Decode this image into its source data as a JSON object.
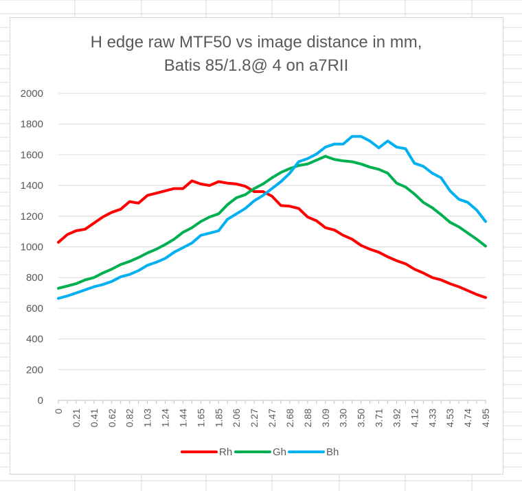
{
  "sheet": {
    "gridline_color": "#d9d9d9"
  },
  "chart_data": {
    "type": "line",
    "title_lines": [
      "H edge raw MTF50 vs image distance in mm,",
      "Batis 85/1.8@ 4 on a7RII"
    ],
    "xlabel": "",
    "ylabel": "",
    "ylim": [
      0,
      2000
    ],
    "yticks": [
      0,
      200,
      400,
      600,
      800,
      1000,
      1200,
      1400,
      1600,
      1800,
      2000
    ],
    "grid": true,
    "legend_position": "bottom",
    "x": [
      0,
      0.1,
      0.21,
      0.31,
      0.41,
      0.51,
      0.62,
      0.72,
      0.82,
      0.92,
      1.03,
      1.13,
      1.24,
      1.34,
      1.44,
      1.54,
      1.65,
      1.75,
      1.85,
      1.95,
      2.06,
      2.16,
      2.27,
      2.37,
      2.47,
      2.57,
      2.68,
      2.78,
      2.88,
      2.98,
      3.09,
      3.19,
      3.3,
      3.4,
      3.5,
      3.6,
      3.71,
      3.81,
      3.92,
      4.02,
      4.12,
      4.22,
      4.33,
      4.43,
      4.53,
      4.63,
      4.74,
      4.84,
      4.95
    ],
    "x_tick_labels": [
      "0",
      "0.21",
      "0.41",
      "0.62",
      "0.82",
      "1.03",
      "1.24",
      "1.44",
      "1.65",
      "1.85",
      "2.06",
      "2.27",
      "2.47",
      "2.68",
      "2.88",
      "3.09",
      "3.30",
      "3.50",
      "3.71",
      "3.92",
      "4.12",
      "4.33",
      "4.53",
      "4.74",
      "4.95"
    ],
    "series": [
      {
        "name": "Rh",
        "color": "#ff0000",
        "values": [
          1030,
          1080,
          1105,
          1115,
          1155,
          1195,
          1225,
          1245,
          1295,
          1285,
          1335,
          1350,
          1365,
          1380,
          1380,
          1430,
          1410,
          1400,
          1425,
          1415,
          1410,
          1395,
          1360,
          1360,
          1330,
          1270,
          1265,
          1250,
          1195,
          1170,
          1125,
          1110,
          1075,
          1050,
          1010,
          985,
          965,
          935,
          910,
          890,
          855,
          830,
          800,
          785,
          760,
          740,
          715,
          690,
          670
        ]
      },
      {
        "name": "Gh",
        "color": "#00b050",
        "values": [
          730,
          745,
          760,
          785,
          800,
          830,
          855,
          885,
          905,
          930,
          960,
          985,
          1015,
          1050,
          1095,
          1125,
          1165,
          1195,
          1215,
          1275,
          1320,
          1340,
          1380,
          1410,
          1450,
          1485,
          1510,
          1530,
          1540,
          1565,
          1590,
          1570,
          1560,
          1555,
          1540,
          1520,
          1505,
          1480,
          1415,
          1390,
          1345,
          1290,
          1255,
          1210,
          1160,
          1130,
          1090,
          1050,
          1005
        ]
      },
      {
        "name": "Bh",
        "color": "#00b0f0",
        "values": [
          665,
          680,
          700,
          720,
          740,
          755,
          775,
          805,
          820,
          845,
          880,
          900,
          925,
          965,
          995,
          1025,
          1075,
          1090,
          1105,
          1180,
          1215,
          1250,
          1300,
          1335,
          1380,
          1425,
          1480,
          1555,
          1575,
          1605,
          1650,
          1670,
          1670,
          1720,
          1720,
          1690,
          1645,
          1690,
          1650,
          1640,
          1545,
          1525,
          1480,
          1450,
          1365,
          1310,
          1290,
          1240,
          1165
        ]
      }
    ]
  }
}
